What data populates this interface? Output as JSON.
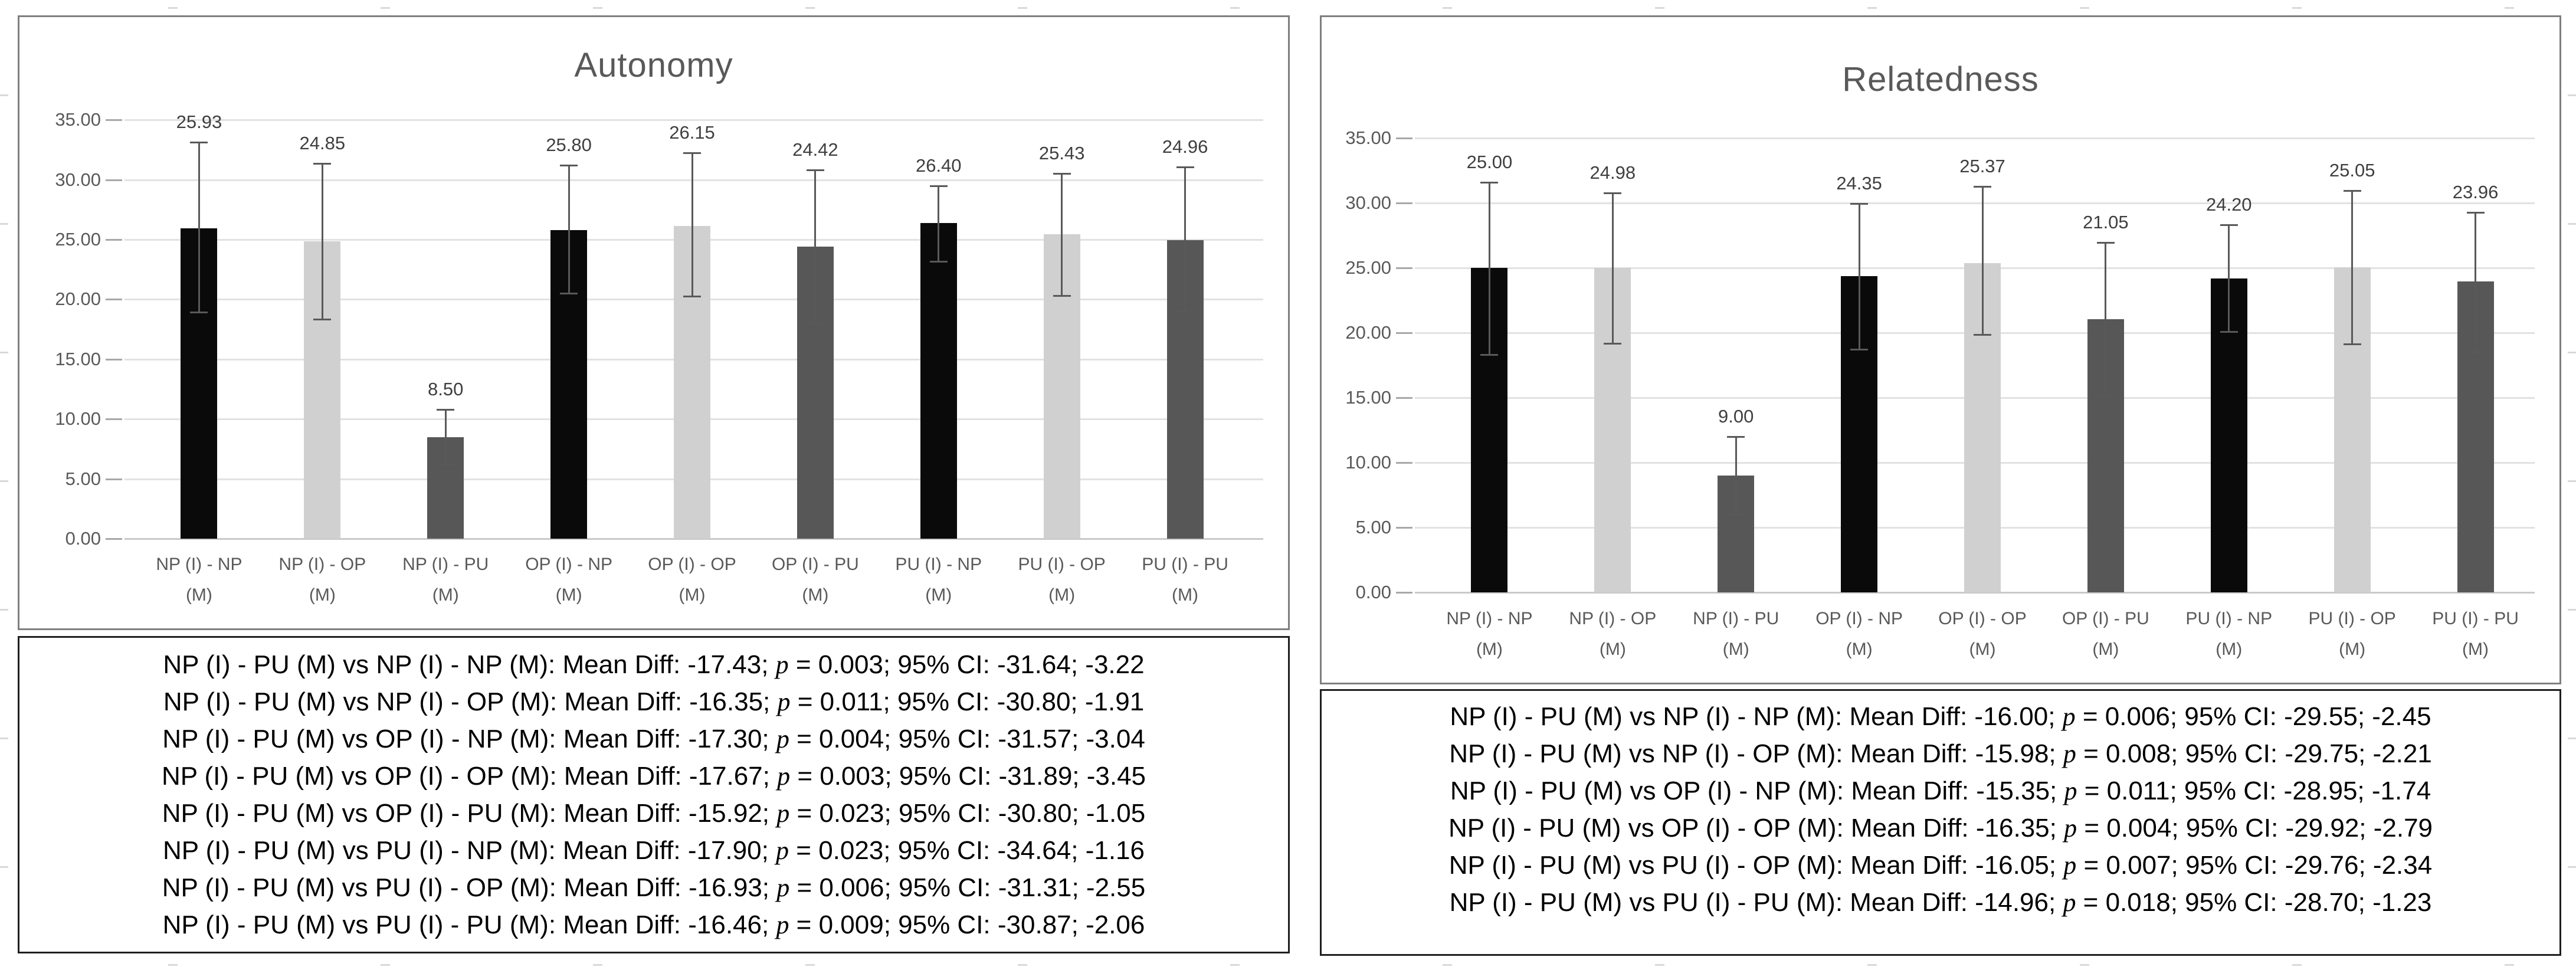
{
  "colors": {
    "bar_black": "#0a0a0a",
    "bar_light_gray": "#d0d0d0",
    "bar_dark_gray": "#575757",
    "gridline": "#e2e2e2",
    "error_bar": "#595959",
    "axis_text": "#595959",
    "value_label_text": "#3f3f3f",
    "title_text": "#595959",
    "chart_border": "#7f7f7f",
    "stats_border": "#1f1f1f",
    "stats_text": "#000000"
  },
  "stats_format": {
    "vs": "vs",
    "mean_diff": "Mean Diff:",
    "p": "p",
    "ci": "95% CI:"
  },
  "chart_data": [
    {
      "type": "bar",
      "title": "Autonomy",
      "categories": [
        "NP (I) - NP (M)",
        "NP (I) - OP (M)",
        "NP (I) - PU (M)",
        "OP (I) - NP (M)",
        "OP (I) - OP (M)",
        "OP (I) - PU (M)",
        "PU (I) - NP (M)",
        "PU (I) - OP (M)",
        "PU (I) - PU (M)"
      ],
      "values": [
        25.93,
        24.85,
        8.5,
        25.8,
        26.15,
        24.42,
        26.4,
        25.43,
        24.96
      ],
      "error_up": [
        7.2,
        6.5,
        2.3,
        5.4,
        6.1,
        6.4,
        3.1,
        5.1,
        6.1
      ],
      "error_down": [
        7.0,
        6.5,
        2.3,
        5.3,
        5.9,
        6.4,
        3.2,
        5.1,
        6.0
      ],
      "bar_colors": [
        "#0a0a0a",
        "#d0d0d0",
        "#575757",
        "#0a0a0a",
        "#d0d0d0",
        "#575757",
        "#0a0a0a",
        "#d0d0d0",
        "#575757"
      ],
      "ylim": [
        0,
        35
      ],
      "ytick_step": 5,
      "ytick_labels": [
        "0.00",
        "5.00",
        "10.00",
        "15.00",
        "20.00",
        "25.00",
        "30.00",
        "35.00"
      ],
      "grid": true,
      "legend": "none",
      "stats": [
        {
          "lhs": "NP (I) - PU (M)",
          "rhs": "NP (I) - NP (M)",
          "mean_diff": "-17.43",
          "p": "0.003",
          "ci_low": "-31.64",
          "ci_high": "-3.22"
        },
        {
          "lhs": "NP (I) - PU (M)",
          "rhs": "NP (I) - OP (M)",
          "mean_diff": "-16.35",
          "p": "0.011",
          "ci_low": "-30.80",
          "ci_high": "-1.91"
        },
        {
          "lhs": "NP (I) - PU (M)",
          "rhs": "OP (I) - NP (M)",
          "mean_diff": "-17.30",
          "p": "0.004",
          "ci_low": "-31.57",
          "ci_high": "-3.04"
        },
        {
          "lhs": "NP (I) - PU (M)",
          "rhs": "OP (I) - OP (M)",
          "mean_diff": "-17.67",
          "p": "0.003",
          "ci_low": "-31.89",
          "ci_high": "-3.45"
        },
        {
          "lhs": "NP (I) - PU (M)",
          "rhs": "OP (I) - PU (M)",
          "mean_diff": "-15.92",
          "p": "0.023",
          "ci_low": "-30.80",
          "ci_high": "-1.05"
        },
        {
          "lhs": "NP (I) - PU (M)",
          "rhs": "PU (I) - NP (M)",
          "mean_diff": "-17.90",
          "p": "0.023",
          "ci_low": "-34.64",
          "ci_high": "-1.16"
        },
        {
          "lhs": "NP (I) - PU (M)",
          "rhs": "PU (I) - OP (M)",
          "mean_diff": "-16.93",
          "p": "0.006",
          "ci_low": "-31.31",
          "ci_high": "-2.55"
        },
        {
          "lhs": "NP (I) - PU (M)",
          "rhs": "PU (I) - PU (M)",
          "mean_diff": "-16.46",
          "p": "0.009",
          "ci_low": "-30.87",
          "ci_high": "-2.06"
        }
      ]
    },
    {
      "type": "bar",
      "title": "Relatedness",
      "categories": [
        "NP (I) - NP (M)",
        "NP (I) - OP (M)",
        "NP (I) - PU (M)",
        "OP (I) - NP (M)",
        "OP (I) - OP (M)",
        "OP (I) - PU (M)",
        "PU (I) - NP (M)",
        "PU (I) - OP (M)",
        "PU (I) - PU (M)"
      ],
      "values": [
        25.0,
        24.98,
        9.0,
        24.35,
        25.37,
        21.05,
        24.2,
        25.05,
        23.96
      ],
      "error_up": [
        6.6,
        5.8,
        3.0,
        5.6,
        5.9,
        5.9,
        4.1,
        5.9,
        5.3
      ],
      "error_down": [
        6.7,
        5.8,
        3.0,
        5.6,
        5.5,
        5.9,
        4.1,
        5.9,
        5.4
      ],
      "bar_colors": [
        "#0a0a0a",
        "#d0d0d0",
        "#575757",
        "#0a0a0a",
        "#d0d0d0",
        "#575757",
        "#0a0a0a",
        "#d0d0d0",
        "#575757"
      ],
      "ylim": [
        0,
        35
      ],
      "ytick_step": 5,
      "ytick_labels": [
        "0.00",
        "5.00",
        "10.00",
        "15.00",
        "20.00",
        "25.00",
        "30.00",
        "35.00"
      ],
      "grid": true,
      "legend": "none",
      "stats": [
        {
          "lhs": "NP (I) - PU (M)",
          "rhs": "NP (I) - NP (M)",
          "mean_diff": "-16.00",
          "p": "0.006",
          "ci_low": "-29.55",
          "ci_high": "-2.45"
        },
        {
          "lhs": "NP (I) - PU (M)",
          "rhs": "NP (I) - OP (M)",
          "mean_diff": "-15.98",
          "p": "0.008",
          "ci_low": "-29.75",
          "ci_high": "-2.21"
        },
        {
          "lhs": "NP (I) - PU (M)",
          "rhs": "OP (I) - NP (M)",
          "mean_diff": "-15.35",
          "p": "0.011",
          "ci_low": "-28.95",
          "ci_high": "-1.74"
        },
        {
          "lhs": "NP (I) - PU (M)",
          "rhs": "OP (I) - OP (M)",
          "mean_diff": "-16.35",
          "p": "0.004",
          "ci_low": "-29.92",
          "ci_high": "-2.79"
        },
        {
          "lhs": "NP (I) - PU (M)",
          "rhs": "PU (I) - OP (M)",
          "mean_diff": "-16.05",
          "p": "0.007",
          "ci_low": "-29.76",
          "ci_high": "-2.34"
        },
        {
          "lhs": "NP (I) - PU (M)",
          "rhs": "PU (I) - PU (M)",
          "mean_diff": "-14.96",
          "p": "0.018",
          "ci_low": "-28.70",
          "ci_high": "-1.23"
        }
      ]
    }
  ]
}
